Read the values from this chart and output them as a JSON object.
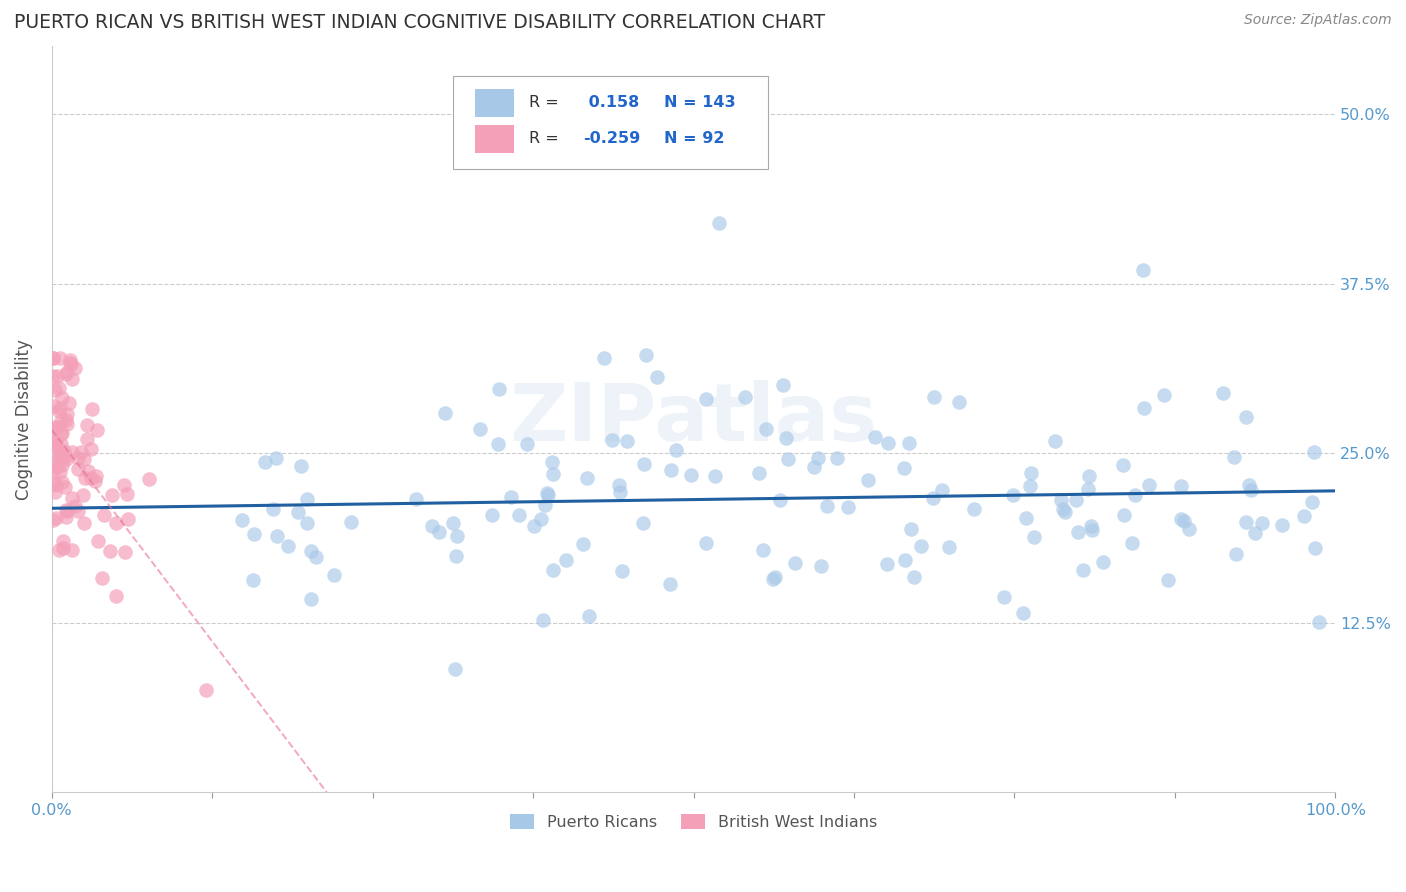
{
  "title": "PUERTO RICAN VS BRITISH WEST INDIAN COGNITIVE DISABILITY CORRELATION CHART",
  "source": "Source: ZipAtlas.com",
  "ylabel": "Cognitive Disability",
  "xlim": [
    0.0,
    1.0
  ],
  "ylim": [
    0.0,
    0.55
  ],
  "xtick_left_label": "0.0%",
  "xtick_right_label": "100.0%",
  "ytick_labels": [
    "12.5%",
    "25.0%",
    "37.5%",
    "50.0%"
  ],
  "ytick_vals": [
    0.125,
    0.25,
    0.375,
    0.5
  ],
  "blue_color": "#a8c8e8",
  "pink_color": "#f4a0b8",
  "blue_line_color": "#2060a0",
  "pink_line_color": "#e87090",
  "r_blue": 0.158,
  "n_blue": 143,
  "r_pink": -0.259,
  "n_pink": 92,
  "legend_label_blue": "Puerto Ricans",
  "legend_label_pink": "British West Indians",
  "watermark": "ZIPatlas",
  "title_color": "#333333",
  "source_color": "#888888",
  "tick_color": "#5599cc",
  "ylabel_color": "#555555",
  "grid_color": "#cccccc",
  "legend_text_color": "#333333",
  "legend_value_color": "#2266cc"
}
